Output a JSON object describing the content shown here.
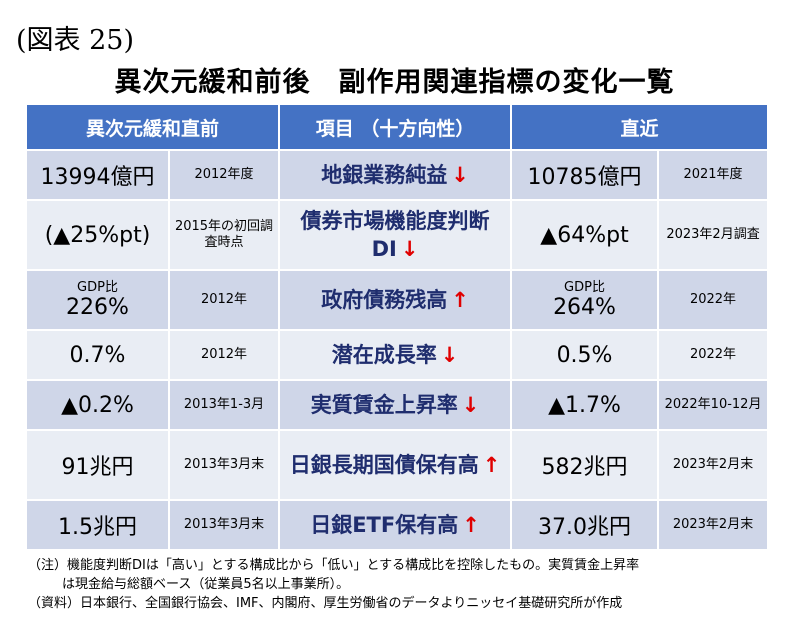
{
  "figure_label": "(図表 25)",
  "title": "異次元緩和前後　副作用関連指標の変化一覧",
  "headers": {
    "before": "異次元緩和直前",
    "item": "項目 （十方向性）",
    "recent": "直近"
  },
  "rows": [
    {
      "before_value": "13994億円",
      "before_sub": "",
      "before_date": "2012年度",
      "item": "地銀業務純益",
      "arrow": "↓",
      "recent_value": "10785億円",
      "recent_sub": "",
      "recent_date": "2021年度"
    },
    {
      "before_value": "(▲25%pt)",
      "before_sub": "",
      "before_date": "2015年の初回調査時点",
      "item": "債券市場機能度判断DI",
      "arrow": "↓",
      "recent_value": "▲64%pt",
      "recent_sub": "",
      "recent_date": "2023年2月調査"
    },
    {
      "before_value": "226%",
      "before_sub": "GDP比",
      "before_date": "2012年",
      "item": "政府債務残高",
      "arrow": "↑",
      "recent_value": "264%",
      "recent_sub": "GDP比",
      "recent_date": "2022年"
    },
    {
      "before_value": "0.7%",
      "before_sub": "",
      "before_date": "2012年",
      "item": "潜在成長率",
      "arrow": "↓",
      "recent_value": "0.5%",
      "recent_sub": "",
      "recent_date": "2022年"
    },
    {
      "before_value": "▲0.2%",
      "before_sub": "",
      "before_date": "2013年1-3月",
      "item": "実質賃金上昇率",
      "arrow": "↓",
      "recent_value": "▲1.7%",
      "recent_sub": "",
      "recent_date": "2022年10-12月"
    },
    {
      "before_value": "91兆円",
      "before_sub": "",
      "before_date": "2013年3月末",
      "item": "日銀長期国債保有高",
      "arrow": "↑",
      "recent_value": "582兆円",
      "recent_sub": "",
      "recent_date": "2023年2月末"
    },
    {
      "before_value": "1.5兆円",
      "before_sub": "",
      "before_date": "2013年3月末",
      "item": "日銀ETF保有高",
      "arrow": "↑",
      "recent_value": "37.0兆円",
      "recent_sub": "",
      "recent_date": "2023年2月末"
    }
  ],
  "notes": {
    "note1": "（注）機能度判断DIは「高い」とする構成比から「低い」とする構成比を控除したもの。実質賃金上昇率",
    "note2": "は現金給与総額ベース（従業員5名以上事業所）。",
    "source": "（資料）日本銀行、全国銀行協会、IMF、内閣府、厚生労働省のデータよりニッセイ基礎研究所が作成"
  }
}
